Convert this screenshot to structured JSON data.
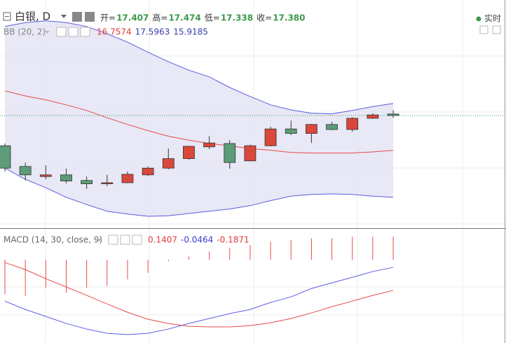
{
  "chart_data": {
    "type": "candlestick",
    "title": "白银, D",
    "realtime": "实时",
    "readout": [
      {
        "label": "开=",
        "value": "17.407"
      },
      {
        "label": "高=",
        "value": "17.474"
      },
      {
        "label": "低=",
        "value": "17.338"
      },
      {
        "label": "收=",
        "value": "17.380"
      }
    ],
    "readout_color": "#3c9a4c",
    "up_color": "#d9483b",
    "down_color": "#5c9c78",
    "ylim": [
      15.38,
      19.38
    ],
    "open": [
      16.84,
      16.47,
      16.29,
      16.32,
      16.22,
      16.16,
      16.18,
      16.32,
      16.44,
      16.61,
      16.82,
      16.88,
      16.57,
      16.84,
      17.14,
      17.06,
      17.22,
      17.13,
      17.33,
      17.407
    ],
    "high": [
      16.88,
      16.54,
      16.49,
      16.43,
      16.29,
      16.32,
      16.38,
      16.47,
      16.79,
      16.84,
      17.01,
      16.94,
      16.86,
      17.18,
      17.29,
      17.23,
      17.27,
      17.35,
      17.42,
      17.474
    ],
    "low": [
      16.38,
      16.22,
      16.24,
      16.17,
      16.07,
      16.12,
      16.17,
      16.3,
      16.42,
      16.59,
      16.78,
      16.43,
      16.56,
      16.83,
      17.03,
      16.89,
      17.12,
      17.09,
      17.32,
      17.338
    ],
    "close": [
      16.44,
      16.32,
      16.32,
      16.21,
      16.16,
      16.18,
      16.33,
      16.44,
      16.61,
      16.83,
      16.89,
      16.54,
      16.84,
      17.14,
      17.06,
      17.22,
      17.13,
      17.33,
      17.39,
      17.38
    ],
    "last_price_color": "#3c9a4c",
    "bollinger": {
      "label": "BB (20, 2)",
      "readout": [
        "16.7574",
        "17.5963",
        "15.9185"
      ],
      "readout_colors": [
        "#e03a3a",
        "#3b3bb0",
        "#3b3bb0"
      ],
      "band_color": "#5b5be0",
      "fill_color": "#e4e4f4",
      "basis_color": "#e84a4a",
      "upper": [
        18.97,
        19.04,
        19.07,
        19.04,
        18.97,
        18.84,
        18.69,
        18.51,
        18.34,
        18.19,
        18.07,
        17.88,
        17.72,
        17.57,
        17.48,
        17.42,
        17.41,
        17.47,
        17.54,
        17.5963
      ],
      "basis": [
        17.82,
        17.73,
        17.66,
        17.57,
        17.47,
        17.34,
        17.22,
        17.11,
        17.01,
        16.94,
        16.88,
        16.84,
        16.79,
        16.76,
        16.72,
        16.71,
        16.71,
        16.71,
        16.73,
        16.7574
      ],
      "lower": [
        16.44,
        16.24,
        16.09,
        15.92,
        15.79,
        15.67,
        15.62,
        15.58,
        15.59,
        15.63,
        15.67,
        15.71,
        15.77,
        15.86,
        15.94,
        15.97,
        15.98,
        15.97,
        15.94,
        15.9185
      ]
    },
    "macd": {
      "label": "MACD (14, 30, close, 9)",
      "readout": [
        "0.1407",
        "-0.0464",
        "-0.1871"
      ],
      "readout_colors": [
        "#e03a3a",
        "#3b3bd0",
        "#e03a3a"
      ],
      "ylim": [
        -0.507,
        0.175
      ],
      "histogram_color": "#e84a4a",
      "macd_color": "#5b5be8",
      "signal_color": "#e84a4a",
      "histogram": [
        -0.21,
        -0.22,
        -0.17,
        -0.2,
        -0.17,
        -0.16,
        -0.12,
        -0.08,
        -0.01,
        0.02,
        0.05,
        0.07,
        0.09,
        0.11,
        0.12,
        0.13,
        0.13,
        0.14,
        0.14,
        0.1407
      ],
      "macd": [
        -0.252,
        -0.303,
        -0.345,
        -0.388,
        -0.422,
        -0.448,
        -0.456,
        -0.448,
        -0.422,
        -0.388,
        -0.358,
        -0.328,
        -0.303,
        -0.26,
        -0.226,
        -0.175,
        -0.141,
        -0.107,
        -0.072,
        -0.0464
      ],
      "signal": [
        -0.017,
        -0.06,
        -0.115,
        -0.166,
        -0.217,
        -0.269,
        -0.32,
        -0.362,
        -0.388,
        -0.405,
        -0.409,
        -0.409,
        -0.401,
        -0.384,
        -0.358,
        -0.324,
        -0.286,
        -0.252,
        -0.217,
        -0.1871
      ]
    }
  }
}
